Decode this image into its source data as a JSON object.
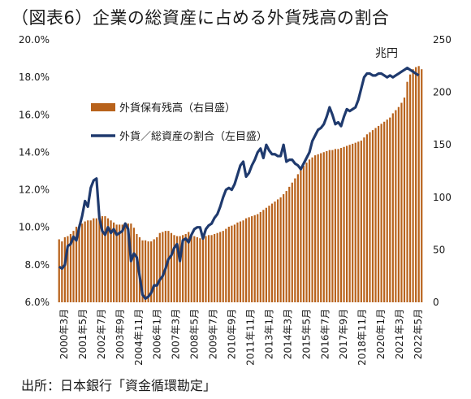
{
  "title": "（図表6）企業の総資産に占める外貨残高の割合",
  "source": "出所：日本銀行「資金循環勘定」",
  "chart_data": {
    "type": "bar+line",
    "y_left": {
      "ticks": [
        "6.0%",
        "8.0%",
        "10.0%",
        "12.0%",
        "14.0%",
        "16.0%",
        "18.0%",
        "20.0%"
      ],
      "min": 6,
      "max": 20
    },
    "y_right": {
      "ticks": [
        "0",
        "50",
        "100",
        "150",
        "200",
        "250"
      ],
      "min": 0,
      "max": 250,
      "unit": "兆円"
    },
    "x_labels": [
      "2000年3月",
      "2001年5月",
      "2002年7月",
      "2003年9月",
      "2004年11月",
      "2006年1月",
      "2007年3月",
      "2008年5月",
      "2009年7月",
      "2010年9月",
      "2011年11月",
      "2013年1月",
      "2014年3月",
      "2015年5月",
      "2016年7月",
      "2017年9月",
      "2018年11月",
      "2020年1月",
      "2021年3月",
      "2022年5月"
    ],
    "legend": {
      "bar": "外貨保有残高（右目盛）",
      "line": "外貨／総資産の割合（左目盛）"
    },
    "series": [
      {
        "name": "外貨保有残高（右目盛）",
        "axis": "right",
        "values": [
          60,
          58,
          62,
          63,
          65,
          68,
          72,
          74,
          75,
          77,
          78,
          78,
          80,
          80,
          82,
          82,
          82,
          80,
          78,
          76,
          74,
          74,
          74,
          75,
          75,
          75,
          71,
          65,
          62,
          59,
          59,
          58,
          58,
          60,
          62,
          66,
          67,
          68,
          68,
          66,
          64,
          63,
          63,
          64,
          65,
          67,
          65,
          63,
          62,
          61,
          62,
          63,
          64,
          64,
          65,
          66,
          67,
          68,
          70,
          72,
          73,
          74,
          76,
          77,
          78,
          80,
          81,
          82,
          83,
          84,
          86,
          88,
          90,
          92,
          94,
          96,
          98,
          100,
          103,
          106,
          110,
          114,
          118,
          122,
          126,
          130,
          133,
          136,
          138,
          140,
          141,
          142,
          143,
          144,
          145,
          145,
          146,
          146,
          147,
          148,
          149,
          150,
          151,
          152,
          153,
          154,
          157,
          160,
          162,
          164,
          166,
          168,
          170,
          172,
          174,
          176,
          180,
          183,
          186,
          190,
          195,
          210,
          217,
          222,
          224,
          225,
          222
        ]
      },
      {
        "name": "外貨／総資産の割合（左目盛）",
        "axis": "left",
        "values": [
          7.9,
          7.8,
          8.0,
          9.0,
          9.1,
          9.5,
          9.3,
          10.0,
          10.6,
          11.4,
          11.1,
          12.1,
          12.5,
          12.6,
          10.5,
          9.8,
          9.6,
          10.0,
          9.7,
          9.9,
          9.6,
          9.7,
          9.8,
          10.2,
          9.9,
          8.2,
          8.6,
          8.4,
          7.4,
          6.4,
          6.2,
          6.3,
          6.5,
          6.9,
          6.9,
          7.2,
          7.4,
          7.8,
          8.3,
          8.5,
          8.9,
          9.1,
          8.2,
          9.3,
          9.4,
          9.2,
          9.6,
          9.9,
          10.0,
          10.0,
          9.4,
          9.9,
          10.1,
          10.2,
          10.5,
          10.7,
          11.1,
          11.6,
          12.0,
          12.1,
          12.0,
          12.3,
          12.8,
          13.3,
          13.5,
          12.7,
          12.9,
          13.3,
          13.6,
          14.0,
          14.2,
          13.7,
          14.4,
          14.1,
          13.9,
          13.9,
          13.8,
          13.8,
          14.4,
          13.5,
          13.6,
          13.6,
          13.4,
          13.3,
          13.1,
          13.4,
          13.7,
          14.0,
          14.6,
          14.9,
          15.2,
          15.3,
          15.5,
          15.9,
          16.4,
          16.0,
          15.5,
          15.6,
          15.4,
          15.9,
          16.3,
          16.2,
          16.3,
          16.4,
          16.8,
          17.4,
          18.0,
          18.2,
          18.2,
          18.1,
          18.1,
          18.2,
          18.2,
          18.1,
          18.0,
          18.1,
          18.0,
          18.1,
          18.2,
          18.3,
          18.4,
          18.5,
          18.4,
          18.3,
          18.2,
          18.1
        ]
      }
    ]
  },
  "colors": {
    "bar": "#b8621b",
    "line": "#1f3a6e"
  }
}
